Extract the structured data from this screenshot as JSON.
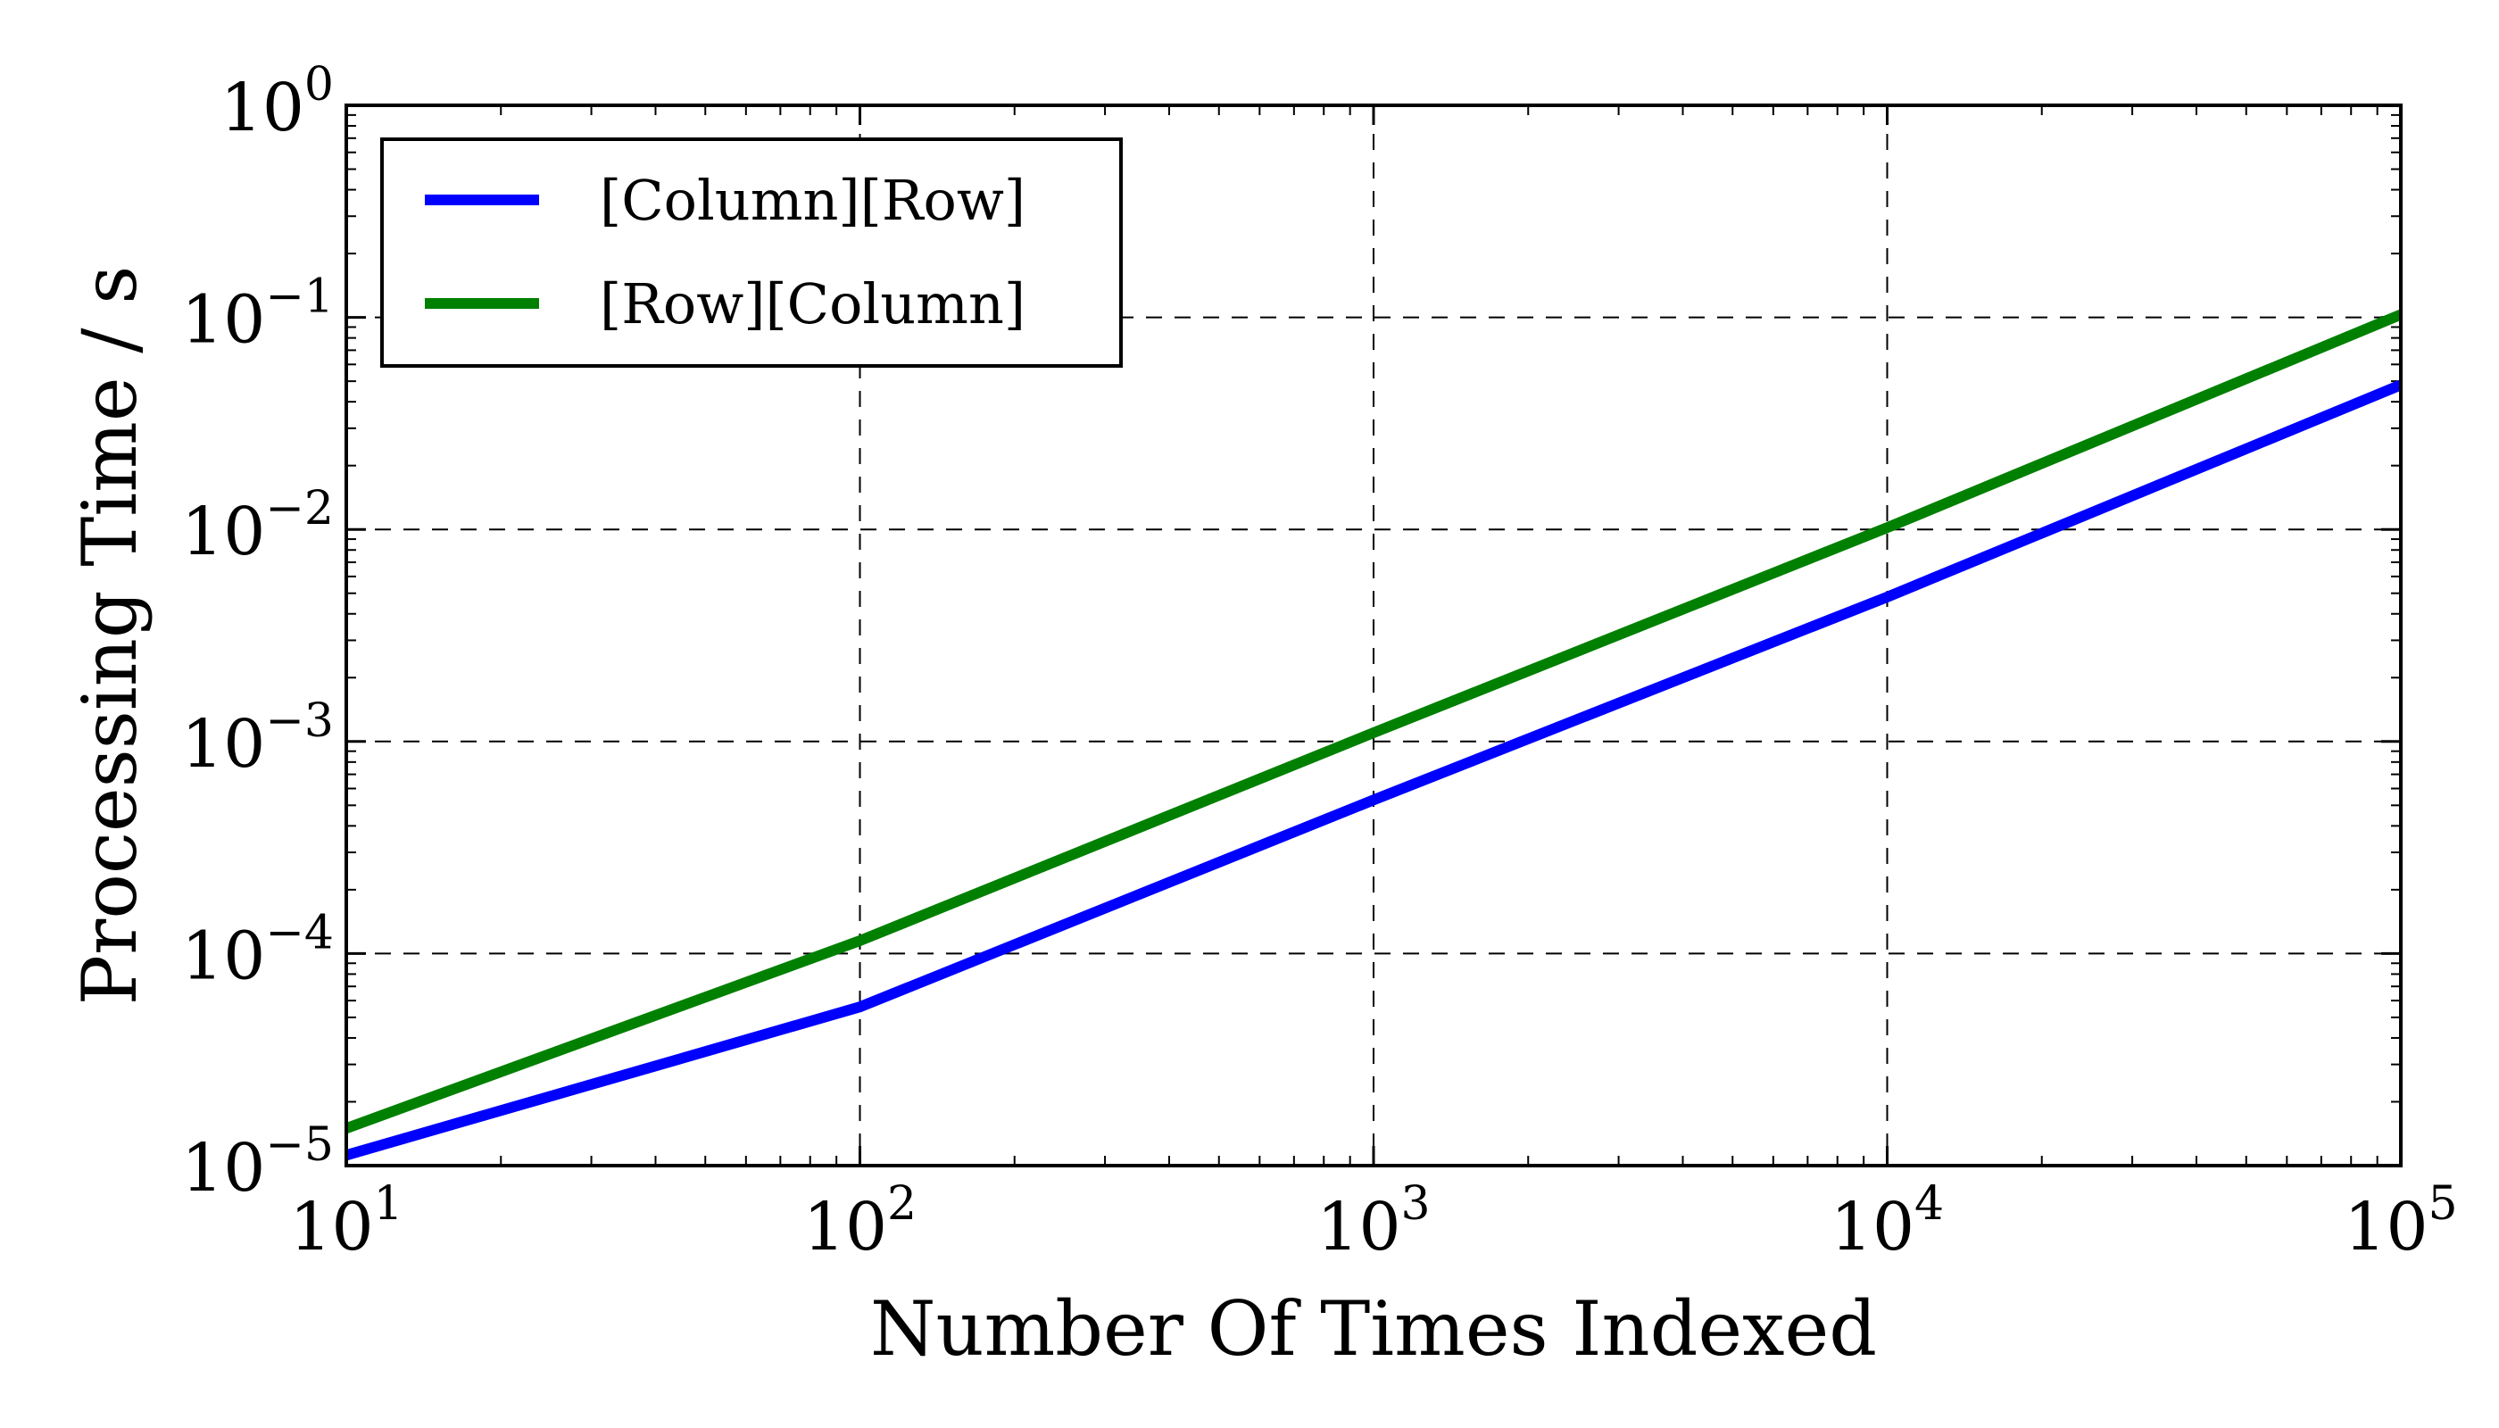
{
  "chart_data": {
    "type": "line",
    "title": "",
    "xlabel": "Number Of Times Indexed",
    "ylabel": "Processing Time / s",
    "xscale": "log",
    "yscale": "log",
    "xlim": [
      10,
      100000
    ],
    "ylim": [
      1e-05,
      1
    ],
    "grid": true,
    "grid_style": "dashed",
    "legend_position": "top-left",
    "x_ticks": [
      {
        "value": 10,
        "base": "10",
        "exp": "1"
      },
      {
        "value": 100,
        "base": "10",
        "exp": "2"
      },
      {
        "value": 1000,
        "base": "10",
        "exp": "3"
      },
      {
        "value": 10000,
        "base": "10",
        "exp": "4"
      },
      {
        "value": 100000,
        "base": "10",
        "exp": "5"
      }
    ],
    "y_ticks": [
      {
        "value": 1e-05,
        "base": "10",
        "exp": "−5"
      },
      {
        "value": 0.0001,
        "base": "10",
        "exp": "−4"
      },
      {
        "value": 0.001,
        "base": "10",
        "exp": "−3"
      },
      {
        "value": 0.01,
        "base": "10",
        "exp": "−2"
      },
      {
        "value": 0.1,
        "base": "10",
        "exp": "−1"
      },
      {
        "value": 1,
        "base": "10",
        "exp": "0"
      }
    ],
    "x": [
      10,
      100,
      1000,
      10000,
      100000
    ],
    "series": [
      {
        "name": "[Column][Row]",
        "color": "#0000ff",
        "values": [
          1.12e-05,
          5.6e-05,
          0.00053,
          0.0048,
          0.048
        ]
      },
      {
        "name": "[Row][Column]",
        "color": "#008000",
        "values": [
          1.5e-05,
          0.000115,
          0.0011,
          0.0102,
          0.103
        ]
      }
    ]
  }
}
